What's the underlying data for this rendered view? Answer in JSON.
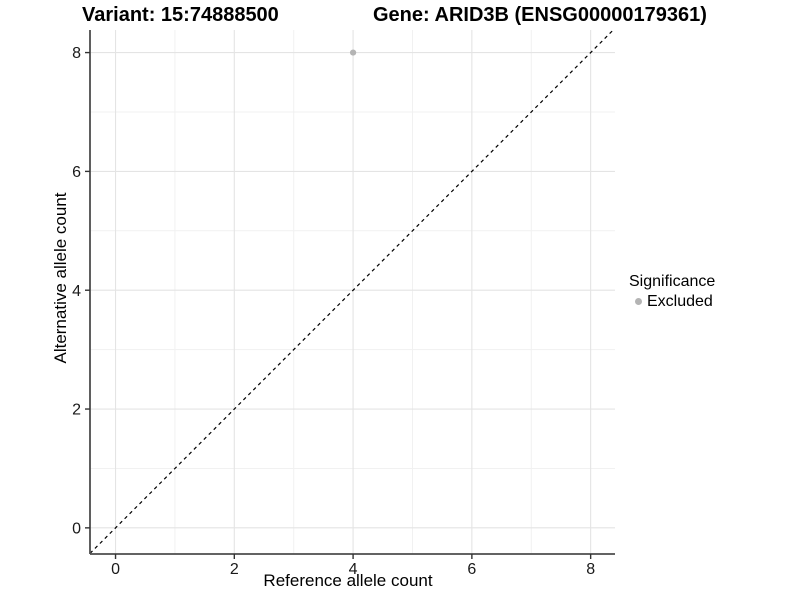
{
  "titles": {
    "variant": "Variant: 15:74888500",
    "gene": "Gene: ARID3B (ENSG00000179361)"
  },
  "axes": {
    "x_label": "Reference allele count",
    "y_label": "Alternative allele count"
  },
  "legend": {
    "title": "Significance",
    "items": [
      {
        "label": "Excluded",
        "color": "#b4b4b4"
      }
    ]
  },
  "chart_data": {
    "type": "scatter",
    "title": "Variant: 15:74888500   Gene: ARID3B (ENSG00000179361)",
    "xlabel": "Reference allele count",
    "ylabel": "Alternative allele count",
    "xlim": [
      -0.43,
      8.41
    ],
    "ylim": [
      -0.44,
      8.38
    ],
    "x_ticks": [
      0,
      2,
      4,
      6,
      8
    ],
    "y_ticks": [
      0,
      2,
      4,
      6,
      8
    ],
    "x_minor_ticks": [
      1,
      3,
      5,
      7
    ],
    "y_minor_ticks": [
      1,
      3,
      5,
      7
    ],
    "grid": true,
    "legend_position": "right",
    "series": [
      {
        "name": "Excluded",
        "color": "#b4b4b4",
        "points": [
          [
            4,
            8
          ]
        ]
      }
    ],
    "reference_line": {
      "type": "abline",
      "slope": 1,
      "intercept": 0,
      "linetype": "dashed",
      "color": "#000000"
    }
  },
  "colors": {
    "background": "#ffffff",
    "grid_major": "#e4e4e4",
    "grid_minor": "#f1f1f1",
    "axis_line": "#4d4d4d",
    "tick_mark": "#333333",
    "point": "#b4b4b4",
    "text": "#000000"
  }
}
